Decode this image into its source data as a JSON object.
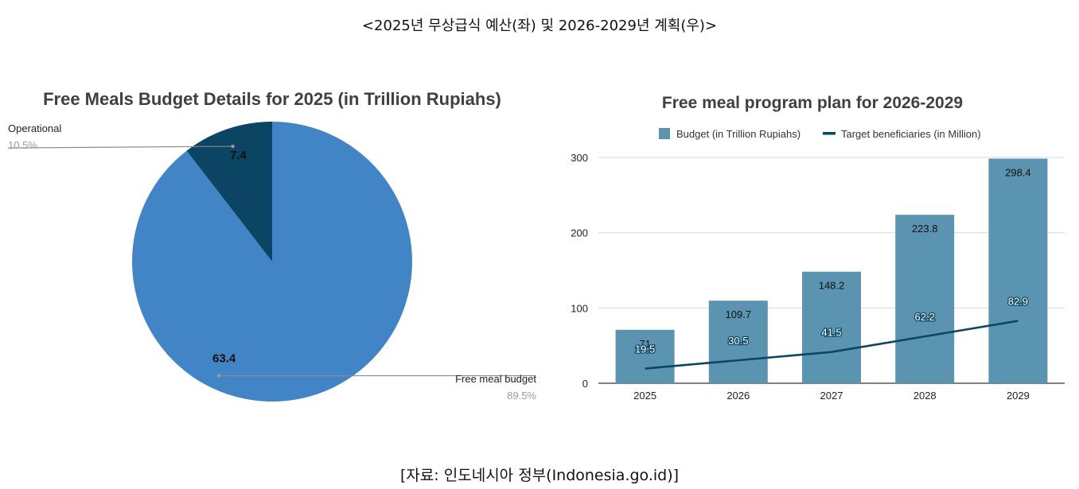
{
  "header": {
    "title": "<2025년 무상급식 예산(좌) 및 2026-2029년 계획(우)>"
  },
  "footer": {
    "source": "[자료: 인도네시아 정부(Indonesia.go.id)]"
  },
  "colors": {
    "pie_main": "#4285c7",
    "pie_operational": "#0b4563",
    "bar": "#5b94b1",
    "line": "#0d4661",
    "grid": "#d9d9d9",
    "axis_text": "#222222"
  },
  "chart_data": [
    {
      "type": "pie",
      "title": "Free Meals Budget Details for 2025 (in Trillion Rupiahs)",
      "slices": [
        {
          "label": "Operational",
          "value": 7.4,
          "percent": "10.5%"
        },
        {
          "label": "Free meal budget",
          "value": 63.4,
          "percent": "89.5%"
        }
      ]
    },
    {
      "type": "bar",
      "title": "Free meal program plan for 2026-2029",
      "categories": [
        "2025",
        "2026",
        "2027",
        "2028",
        "2029"
      ],
      "series": [
        {
          "name": "Budget (in Trillion Rupiahs)",
          "kind": "bar",
          "values": [
            71,
            109.7,
            148.2,
            223.8,
            298.4
          ]
        },
        {
          "name": "Target beneficiaries (in Million)",
          "kind": "line",
          "values": [
            19.5,
            30.5,
            41.5,
            62.2,
            82.9
          ]
        }
      ],
      "yticks": [
        "0",
        "100",
        "200",
        "300"
      ],
      "ylim": [
        0,
        300
      ],
      "grid": true,
      "legend": "top"
    }
  ]
}
